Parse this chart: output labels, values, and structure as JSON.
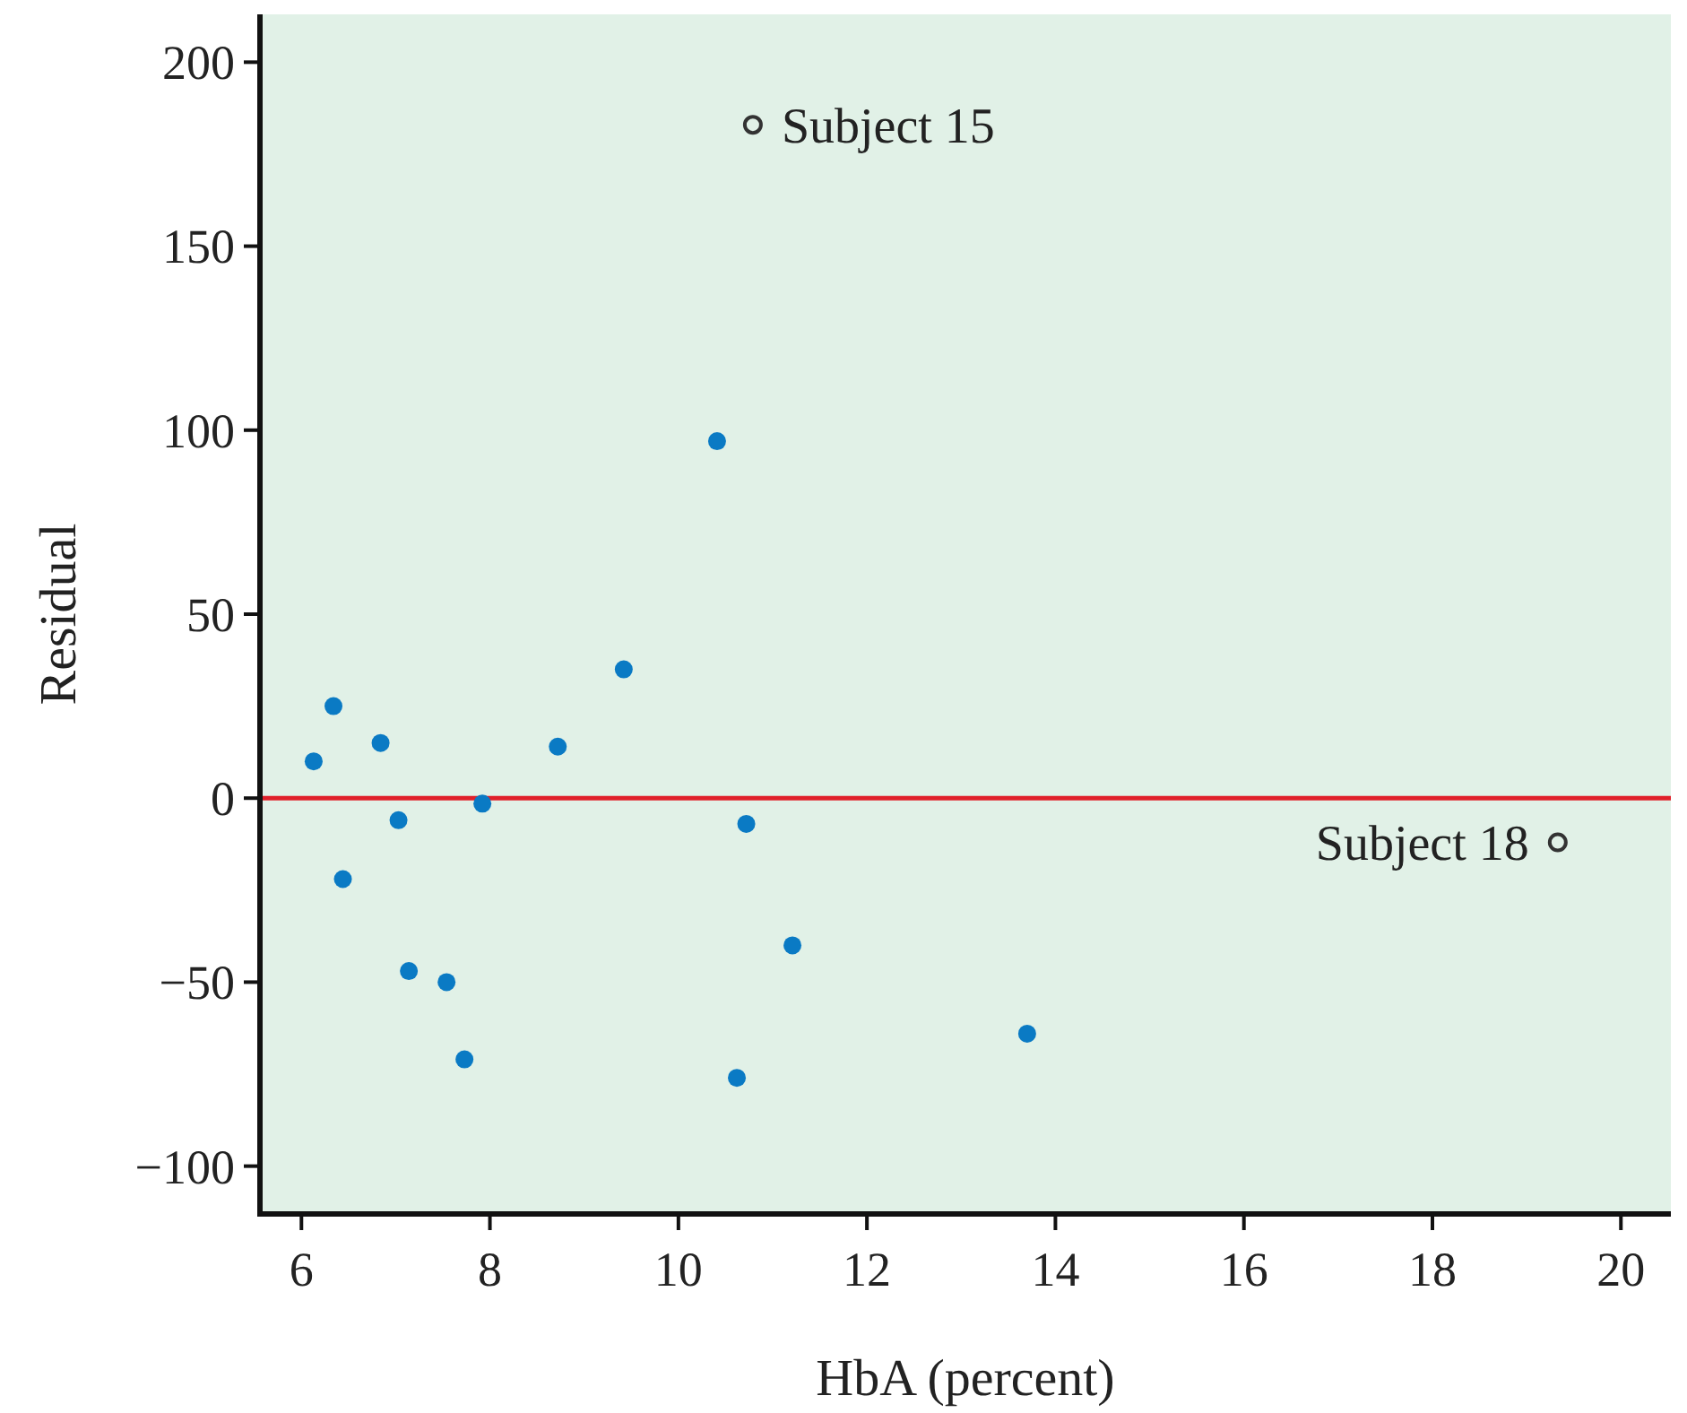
{
  "chart_data": {
    "type": "scatter",
    "xlabel": "HbA (percent)",
    "ylabel": "Residual",
    "xlim": [
      5.56,
      20.53
    ],
    "ylim": [
      -113,
      213
    ],
    "xticks": [
      6,
      8,
      10,
      12,
      14,
      16,
      18,
      20
    ],
    "yticks": [
      {
        "value": -100,
        "label": "−100"
      },
      {
        "value": -50,
        "label": "−50"
      },
      0,
      50,
      100,
      150,
      200
    ],
    "grid": false,
    "marker": "circle",
    "series": [
      {
        "color": "#0a7ac4",
        "x": [
          6.13,
          6.34,
          6.44,
          6.84,
          7.03,
          7.14,
          7.54,
          7.73,
          7.92,
          8.72,
          9.42,
          10.41,
          10.72,
          10.62,
          11.21,
          13.7
        ],
        "values": [
          10,
          25,
          -22,
          15,
          -6,
          -47,
          -50,
          -71,
          -1.5,
          14,
          35,
          97,
          -7,
          -76,
          -40,
          -64
        ]
      },
      {
        "color": "#333333",
        "x": [
          10.79,
          19.33
        ],
        "values": [
          183,
          -12
        ]
      }
    ],
    "ref_lines": [
      {
        "axis": "y",
        "value": 0,
        "color": "#e0202a"
      }
    ],
    "annotations": [
      {
        "text": "Subject 15",
        "x": 10.79,
        "y": 183
      },
      {
        "text": "Subject 18",
        "x": 19.33,
        "y": -12
      }
    ]
  }
}
